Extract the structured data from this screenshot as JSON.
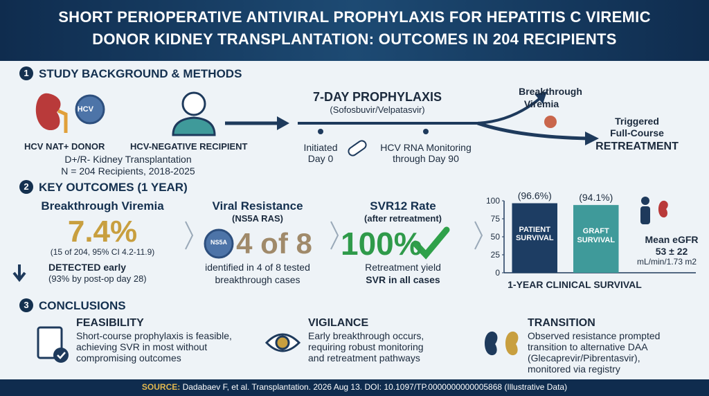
{
  "header": {
    "title_lines": [
      "SHORT PERIOPERATIVE ANTIVIRAL PROPHYLAXIS FOR HEPATITIS C VIREMIC",
      "DONOR KIDNEY TRANSPLANTATION: OUTCOMES IN 204 RECIPIENTS"
    ]
  },
  "background": {
    "number": "1",
    "heading": "STUDY BACKGROUND & METHODS",
    "virus_label": "HCV",
    "donor": "HCV NAT+ DONOR",
    "recipient": "HCV-NEGATIVE RECIPIENT",
    "details": [
      "D+/R- Kidney Transplantation",
      "N = 204 Recipients, 2018-2025"
    ],
    "prophylaxis_title": "7-DAY PROPHYLAXIS",
    "prophylaxis_drug": "(Sofosbuvir/Velpatasvir)",
    "timeline": [
      [
        "Initiated",
        "Day 0"
      ],
      [
        "HCV RNA Monitoring",
        "through Day 90"
      ]
    ],
    "branch_up": [
      "Breakthrough",
      "Viremia"
    ],
    "branch_down": [
      "Triggered",
      "Full-Course",
      "RETREATMENT"
    ]
  },
  "outcomes": {
    "number": "2",
    "heading": "KEY OUTCOMES (1 YEAR)",
    "cards": [
      {
        "title": "Breakthrough Viremia",
        "big": "7.4%",
        "sub": "(15 of 204, 95% CI 4.2-11.9)",
        "lines": [
          "DETECTED early",
          "(93% by post-op day 28)"
        ]
      },
      {
        "title": "Viral Resistance",
        "subtitle": "(NS5A RAS)",
        "icon": "NS5A",
        "big": "4 of 8",
        "lines": [
          "identified in 4 of 8 tested",
          "breakthrough cases"
        ]
      },
      {
        "title": "SVR12 Rate",
        "subtitle": "(after retreatment)",
        "big": "100%",
        "lines": [
          "Retreatment yield",
          "SVR in all cases"
        ]
      }
    ],
    "egfr": [
      "Mean eGFR",
      "53 ± 22",
      "mL/min/1.73 m2"
    ]
  },
  "chart_data": {
    "type": "bar",
    "title": "1-YEAR CLINICAL SURVIVAL",
    "categories": [
      "PATIENT SURVIVAL",
      "GRAFT SURVIVAL"
    ],
    "series": [
      {
        "name": "Survival",
        "colors": [
          "#1d3d63",
          "#3f9a9a"
        ],
        "values": [
          96.6,
          94.1
        ],
        "value_labels": [
          "(96.6%)",
          "(94.1%)"
        ]
      }
    ],
    "ylim": [
      0,
      100
    ],
    "yticks": [
      0,
      25,
      50,
      75,
      100
    ],
    "grid": false
  },
  "conclusions": {
    "number": "3",
    "heading": "CONCLUSIONS",
    "items": [
      {
        "title": "FEASIBILITY",
        "lines": [
          "Short-course prophylaxis is feasible,",
          "achieving SVR in most without",
          "compromising outcomes"
        ]
      },
      {
        "title": "VIGILANCE",
        "lines": [
          "Early breakthrough occurs,",
          "requiring robust monitoring",
          "and retreatment pathways"
        ]
      },
      {
        "title": "TRANSITION",
        "lines": [
          "Observed resistance prompted",
          "transition to alternative DAA",
          "(Glecaprevir/Pibrentasvir),",
          "monitored via registry"
        ]
      }
    ]
  },
  "footer": {
    "label": "SOURCE:",
    "text": "Dadabaev F, et al. Transplantation. 2026 Aug 13. DOI: 10.1097/TP.0000000000005868 (Illustrative Data)"
  }
}
